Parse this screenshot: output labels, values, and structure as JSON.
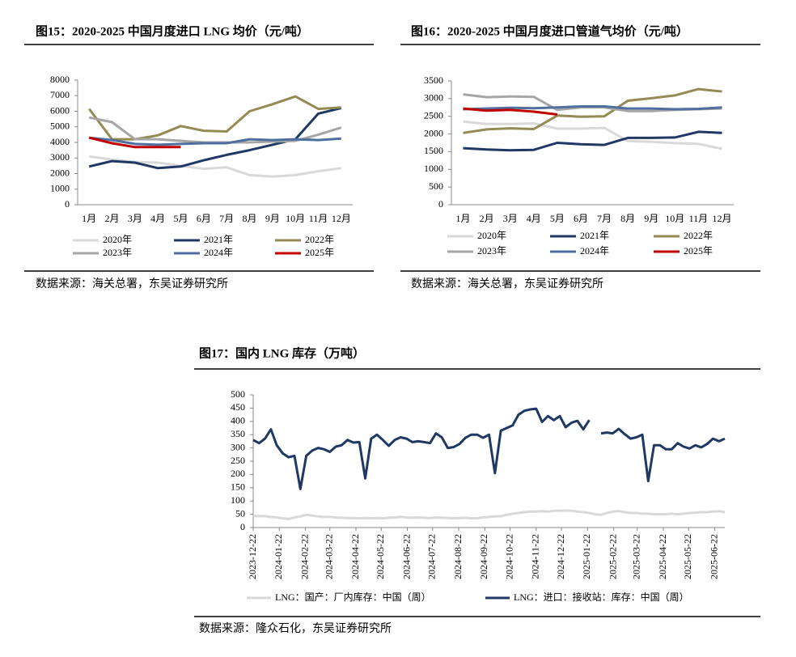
{
  "chart_data": [
    {
      "type": "line",
      "title": "图15：2020-2025 中国月度进口 LNG 均价（元/吨）",
      "source": "数据来源：海关总署，东吴证券研究所",
      "categories": [
        "1月",
        "2月",
        "3月",
        "4月",
        "5月",
        "6月",
        "7月",
        "8月",
        "9月",
        "10月",
        "11月",
        "12月"
      ],
      "ylim": [
        0,
        8000
      ],
      "yticks": [
        0,
        1000,
        2000,
        3000,
        4000,
        5000,
        6000,
        7000,
        8000
      ],
      "series": [
        {
          "name": "2020年",
          "color": "#d9d9d9",
          "values": [
            3100,
            2900,
            2750,
            2700,
            2500,
            2300,
            2400,
            1900,
            1800,
            1900,
            2150,
            2350
          ]
        },
        {
          "name": "2021年",
          "color": "#1f3864",
          "values": [
            2450,
            2800,
            2700,
            2350,
            2450,
            2850,
            3200,
            3500,
            3850,
            4200,
            5850,
            6200
          ]
        },
        {
          "name": "2022年",
          "color": "#948a54",
          "values": [
            6150,
            4200,
            4200,
            4450,
            5050,
            4750,
            4700,
            6000,
            6450,
            6950,
            6150,
            6250
          ]
        },
        {
          "name": "2023年",
          "color": "#a6a6a6",
          "values": [
            5600,
            5300,
            4200,
            4200,
            4100,
            4000,
            4000,
            4000,
            4050,
            4100,
            4500,
            4950
          ]
        },
        {
          "name": "2024年",
          "color": "#4f6fa0",
          "values": [
            4300,
            4150,
            3900,
            3850,
            3900,
            3950,
            3950,
            4200,
            4150,
            4200,
            4150,
            4250
          ]
        },
        {
          "name": "2025年",
          "color": "#c00000",
          "values": [
            4300,
            3950,
            3700,
            3700,
            3700,
            null,
            null,
            null,
            null,
            null,
            null,
            null
          ]
        }
      ]
    },
    {
      "type": "line",
      "title": "图16：2020-2025 中国月度进口管道气均价（元/吨）",
      "source": "数据来源：海关总署，东吴证券研究所",
      "categories": [
        "1月",
        "2月",
        "3月",
        "4月",
        "5月",
        "6月",
        "7月",
        "8月",
        "9月",
        "10月",
        "11月",
        "12月"
      ],
      "ylim": [
        0,
        3500
      ],
      "yticks": [
        0,
        500,
        1000,
        1500,
        2000,
        2500,
        3000,
        3500
      ],
      "series": [
        {
          "name": "2020年",
          "color": "#d9d9d9",
          "values": [
            2350,
            2280,
            2280,
            2300,
            2150,
            2150,
            2170,
            1800,
            1780,
            1740,
            1720,
            1580
          ]
        },
        {
          "name": "2021年",
          "color": "#1f3864",
          "values": [
            1600,
            1560,
            1540,
            1550,
            1750,
            1710,
            1690,
            1890,
            1890,
            1900,
            2060,
            2030
          ]
        },
        {
          "name": "2022年",
          "color": "#948a54",
          "values": [
            2030,
            2130,
            2160,
            2140,
            2520,
            2490,
            2500,
            2940,
            3010,
            3090,
            3270,
            3200
          ]
        },
        {
          "name": "2023年",
          "color": "#a6a6a6",
          "values": [
            3120,
            3040,
            3060,
            3050,
            2680,
            2750,
            2750,
            2650,
            2650,
            2680,
            2700,
            2720
          ]
        },
        {
          "name": "2024年",
          "color": "#4f6fa0",
          "values": [
            2700,
            2720,
            2740,
            2730,
            2750,
            2780,
            2780,
            2720,
            2720,
            2700,
            2710,
            2750
          ]
        },
        {
          "name": "2025年",
          "color": "#c00000",
          "values": [
            2720,
            2660,
            2680,
            2630,
            2550,
            null,
            null,
            null,
            null,
            null,
            null,
            null
          ]
        }
      ]
    },
    {
      "type": "timeline",
      "title": "图17：国内 LNG 库存（万吨）",
      "source": "数据来源：隆众石化，东吴证券研究所",
      "x": [
        "2023-12-22",
        "2023-12-29",
        "2024-01-05",
        "2024-01-12",
        "2024-01-19",
        "2024-01-26",
        "2024-02-02",
        "2024-02-09",
        "2024-02-16",
        "2024-02-23",
        "2024-03-01",
        "2024-03-08",
        "2024-03-15",
        "2024-03-22",
        "2024-03-29",
        "2024-04-05",
        "2024-04-12",
        "2024-04-19",
        "2024-04-26",
        "2024-05-03",
        "2024-05-10",
        "2024-05-17",
        "2024-05-24",
        "2024-05-31",
        "2024-06-07",
        "2024-06-14",
        "2024-06-21",
        "2024-06-28",
        "2024-07-05",
        "2024-07-12",
        "2024-07-19",
        "2024-07-26",
        "2024-08-02",
        "2024-08-09",
        "2024-08-16",
        "2024-08-23",
        "2024-08-30",
        "2024-09-06",
        "2024-09-13",
        "2024-09-20",
        "2024-09-27",
        "2024-10-04",
        "2024-10-11",
        "2024-10-18",
        "2024-10-25",
        "2024-11-01",
        "2024-11-08",
        "2024-11-15",
        "2024-11-22",
        "2024-11-29",
        "2024-12-06",
        "2024-12-13",
        "2024-12-20",
        "2024-12-27",
        "2025-01-03",
        "2025-01-10",
        "2025-01-17",
        "2025-01-24",
        "2025-01-31",
        "2025-02-07",
        "2025-02-14",
        "2025-02-21",
        "2025-02-28",
        "2025-03-07",
        "2025-03-14",
        "2025-03-21",
        "2025-03-28",
        "2025-04-04",
        "2025-04-11",
        "2025-04-18",
        "2025-04-25",
        "2025-05-02",
        "2025-05-09",
        "2025-05-16",
        "2025-05-23",
        "2025-05-30",
        "2025-06-06",
        "2025-06-13",
        "2025-06-20",
        "2025-06-27",
        "2025-07-04"
      ],
      "xlim": [
        "2023-12-22",
        "2025-07-04"
      ],
      "xticks": [
        "2023-12-22",
        "2024-01-22",
        "2024-02-22",
        "2024-03-22",
        "2024-04-22",
        "2024-05-22",
        "2024-06-22",
        "2024-07-22",
        "2024-08-22",
        "2024-09-22",
        "2024-10-22",
        "2024-11-22",
        "2024-12-22",
        "2025-01-22",
        "2025-02-22",
        "2025-03-22",
        "2025-04-22",
        "2025-05-22",
        "2025-06-22"
      ],
      "ylim": [
        0,
        500
      ],
      "yticks": [
        0,
        50,
        100,
        150,
        200,
        250,
        300,
        350,
        400,
        450,
        500
      ],
      "series": [
        {
          "name": "LNG：国产：厂内库存：中国（周）",
          "color": "#d9d9d9",
          "values": [
            45,
            43,
            43,
            40,
            38,
            35,
            32,
            38,
            42,
            48,
            45,
            42,
            40,
            40,
            38,
            37,
            36,
            36,
            35,
            36,
            35,
            36,
            35,
            37,
            38,
            40,
            38,
            37,
            38,
            37,
            36,
            38,
            37,
            36,
            35,
            36,
            37,
            35,
            35,
            38,
            40,
            42,
            43,
            48,
            52,
            55,
            58,
            60,
            60,
            62,
            60,
            63,
            63,
            64,
            63,
            60,
            58,
            55,
            50,
            48,
            55,
            60,
            62,
            58,
            55,
            55,
            52,
            52,
            50,
            50,
            50,
            52,
            50,
            52,
            55,
            56,
            58,
            58,
            60,
            62,
            58
          ]
        },
        {
          "name": "LNG：进口：接收站：库存：中国（周）",
          "color": "#1f3864",
          "values": [
            330,
            318,
            335,
            370,
            310,
            280,
            265,
            270,
            145,
            270,
            290,
            300,
            295,
            285,
            305,
            310,
            330,
            320,
            322,
            185,
            335,
            350,
            330,
            308,
            330,
            340,
            335,
            322,
            325,
            322,
            318,
            355,
            340,
            300,
            303,
            315,
            338,
            350,
            350,
            338,
            350,
            205,
            365,
            375,
            385,
            425,
            440,
            445,
            448,
            398,
            420,
            405,
            420,
            378,
            395,
            402,
            370,
            405,
            null,
            355,
            358,
            355,
            372,
            352,
            335,
            340,
            350,
            175,
            310,
            310,
            295,
            295,
            318,
            305,
            298,
            310,
            302,
            315,
            335,
            325,
            335
          ]
        }
      ]
    }
  ]
}
